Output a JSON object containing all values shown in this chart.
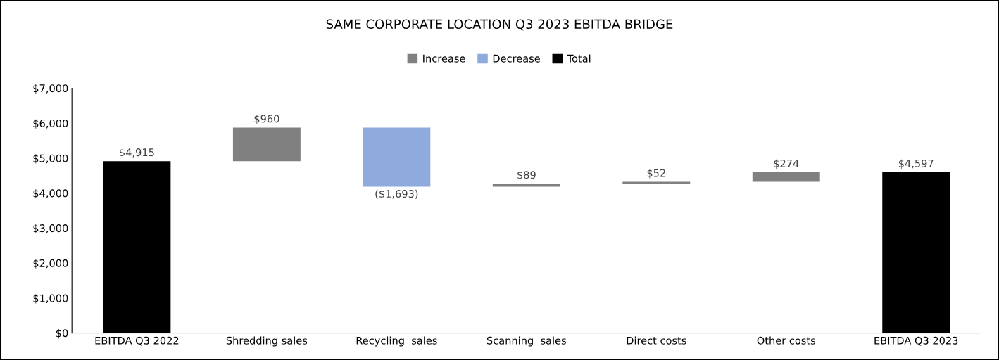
{
  "chart_data": {
    "type": "bar",
    "title": "SAME CORPORATE LOCATION Q3 2023 EBITDA BRIDGE",
    "categories": [
      "EBITDA Q3 2022",
      "Shredding sales",
      "Recycling  sales",
      "Scanning  sales",
      "Direct costs",
      "Other costs",
      "EBITDA Q3 2023"
    ],
    "series": [
      {
        "name": "Increase",
        "color": "#808080",
        "values": [
          null,
          960,
          null,
          89,
          52,
          274,
          null
        ],
        "base": [
          null,
          4915,
          null,
          4182,
          4271,
          4323,
          null
        ],
        "value_labels": [
          null,
          "$960",
          null,
          "$89",
          "$52",
          "$274",
          null
        ]
      },
      {
        "name": "Decrease",
        "color": "#8faadc",
        "values": [
          null,
          null,
          -1693,
          null,
          null,
          null,
          null
        ],
        "base": [
          null,
          null,
          5875,
          null,
          null,
          null,
          null
        ],
        "value_labels": [
          null,
          null,
          "($1,693)",
          null,
          null,
          null,
          null
        ]
      },
      {
        "name": "Total",
        "color": "#000000",
        "values": [
          4915,
          null,
          null,
          null,
          null,
          null,
          4597
        ],
        "base": [
          0,
          null,
          null,
          null,
          null,
          null,
          0
        ],
        "value_labels": [
          "$4,915",
          null,
          null,
          null,
          null,
          null,
          "$4,597"
        ]
      }
    ],
    "ylim": [
      0,
      7000
    ],
    "yticks": [
      {
        "value": 0,
        "label": "$0"
      },
      {
        "value": 1000,
        "label": "$1,000"
      },
      {
        "value": 2000,
        "label": "$2,000"
      },
      {
        "value": 3000,
        "label": "$3,000"
      },
      {
        "value": 4000,
        "label": "$4,000"
      },
      {
        "value": 5000,
        "label": "$5,000"
      },
      {
        "value": 6000,
        "label": "$6,000"
      },
      {
        "value": 7000,
        "label": "$7,000"
      }
    ],
    "grid": false,
    "legend": "top"
  }
}
